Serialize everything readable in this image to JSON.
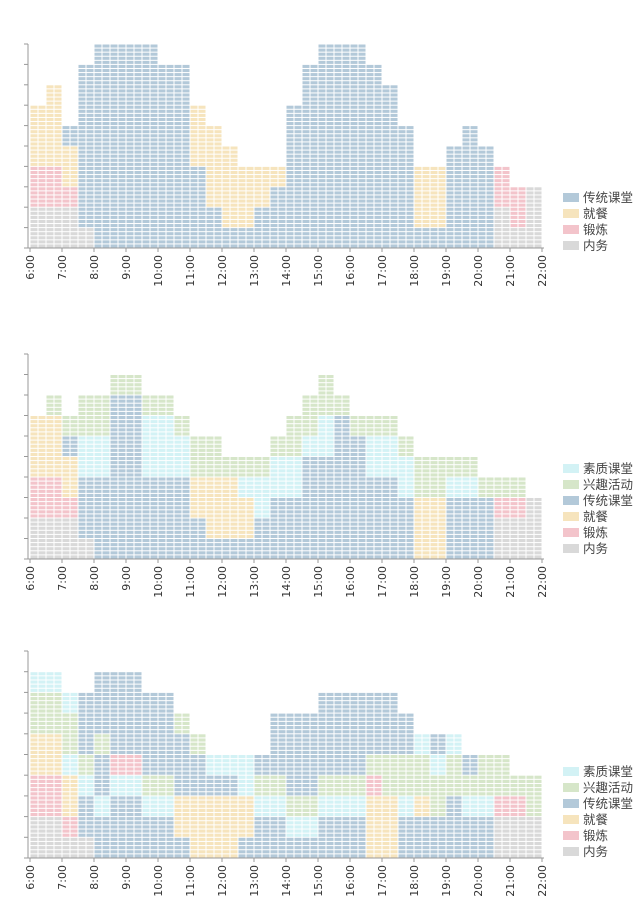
{
  "colors": {
    "传统课堂": "#b3c9d9",
    "就餐": "#f6e4bd",
    "锻炼": "#f3c4cb",
    "内务": "#d9d9d9",
    "素质课堂": "#d3f2f5",
    "兴趣活动": "#d6e6c9"
  },
  "chart_data": [
    {
      "type": "stacked-cell-timeline",
      "x_categories": [
        "6:00",
        "7:00",
        "8:00",
        "9:00",
        "10:00",
        "11:00",
        "12:00",
        "13:00",
        "14:00",
        "15:00",
        "16:00",
        "17:00",
        "18:00",
        "19:00",
        "20:00",
        "21:00",
        "22:00"
      ],
      "y_ticks": 10,
      "legend": [
        "传统课堂",
        "就餐",
        "锻炼",
        "内务"
      ],
      "x_slots": 32,
      "columns": [
        [
          "内务:2",
          "锻炼:2",
          "就餐:3"
        ],
        [
          "内务:2",
          "锻炼:2",
          "就餐:4"
        ],
        [
          "内务:2",
          "锻炼:1",
          "就餐:2",
          "传统课堂:1"
        ],
        [
          "内务:1",
          "传统课堂:8"
        ],
        [
          "传统课堂:10"
        ],
        [
          "传统课堂:10"
        ],
        [
          "传统课堂:10"
        ],
        [
          "传统课堂:10"
        ],
        [
          "传统课堂:9"
        ],
        [
          "传统课堂:9"
        ],
        [
          "传统课堂:4",
          "就餐:3"
        ],
        [
          "传统课堂:2",
          "就餐:4"
        ],
        [
          "传统课堂:1",
          "就餐:4"
        ],
        [
          "传统课堂:1",
          "就餐:3"
        ],
        [
          "传统课堂:2",
          "就餐:2"
        ],
        [
          "传统课堂:3",
          "就餐:1"
        ],
        [
          "传统课堂:7"
        ],
        [
          "传统课堂:9"
        ],
        [
          "传统课堂:10"
        ],
        [
          "传统课堂:10"
        ],
        [
          "传统课堂:10"
        ],
        [
          "传统课堂:9"
        ],
        [
          "传统课堂:8"
        ],
        [
          "传统课堂:6"
        ],
        [
          "传统课堂:1",
          "就餐:3"
        ],
        [
          "传统课堂:1",
          "就餐:3"
        ],
        [
          "传统课堂:5"
        ],
        [
          "传统课堂:6"
        ],
        [
          "传统课堂:5"
        ],
        [
          "内务:2",
          "锻炼:2"
        ],
        [
          "内务:1",
          "锻炼:2"
        ],
        [
          "内务:3"
        ]
      ]
    },
    {
      "type": "stacked-cell-timeline",
      "x_categories": [
        "6:00",
        "7:00",
        "8:00",
        "9:00",
        "10:00",
        "11:00",
        "12:00",
        "13:00",
        "14:00",
        "15:00",
        "16:00",
        "17:00",
        "18:00",
        "19:00",
        "20:00",
        "21:00",
        "22:00"
      ],
      "y_ticks": 10,
      "legend": [
        "素质课堂",
        "兴趣活动",
        "传统课堂",
        "就餐",
        "锻炼",
        "内务"
      ],
      "x_slots": 32,
      "columns": [
        [
          "内务:2",
          "锻炼:2",
          "就餐:3"
        ],
        [
          "内务:2",
          "锻炼:2",
          "就餐:3",
          "兴趣活动:1"
        ],
        [
          "内务:2",
          "锻炼:1",
          "就餐:2",
          "传统课堂:1",
          "兴趣活动:1"
        ],
        [
          "内务:1",
          "传统课堂:3",
          "素质课堂:2",
          "兴趣活动:2"
        ],
        [
          "传统课堂:4",
          "素质课堂:2",
          "兴趣活动:2"
        ],
        [
          "传统课堂:8",
          "兴趣活动:1"
        ],
        [
          "传统课堂:8",
          "兴趣活动:1"
        ],
        [
          "传统课堂:4",
          "素质课堂:3",
          "兴趣活动:1"
        ],
        [
          "传统课堂:4",
          "素质课堂:3",
          "兴趣活动:1"
        ],
        [
          "传统课堂:4",
          "素质课堂:2",
          "兴趣活动:1"
        ],
        [
          "传统课堂:2",
          "就餐:2",
          "兴趣活动:2"
        ],
        [
          "传统课堂:1",
          "就餐:3",
          "兴趣活动:2"
        ],
        [
          "传统课堂:1",
          "就餐:3",
          "兴趣活动:1"
        ],
        [
          "传统课堂:1",
          "就餐:2",
          "素质课堂:1",
          "兴趣活动:1"
        ],
        [
          "传统课堂:2",
          "素质课堂:2",
          "兴趣活动:1"
        ],
        [
          "传统课堂:3",
          "素质课堂:2",
          "兴趣活动:1"
        ],
        [
          "传统课堂:3",
          "素质课堂:2",
          "兴趣活动:2"
        ],
        [
          "传统课堂:5",
          "素质课堂:1",
          "兴趣活动:2"
        ],
        [
          "传统课堂:5",
          "素质课堂:2",
          "兴趣活动:2"
        ],
        [
          "传统课堂:7",
          "兴趣活动:1"
        ],
        [
          "传统课堂:6",
          "兴趣活动:1"
        ],
        [
          "传统课堂:4",
          "素质课堂:2",
          "兴趣活动:1"
        ],
        [
          "传统课堂:4",
          "素质课堂:2",
          "兴趣活动:1"
        ],
        [
          "传统课堂:3",
          "素质课堂:2",
          "兴趣活动:1"
        ],
        [
          "就餐:3",
          "兴趣活动:2"
        ],
        [
          "就餐:3",
          "兴趣活动:2"
        ],
        [
          "传统课堂:3",
          "素质课堂:1",
          "兴趣活动:1"
        ],
        [
          "传统课堂:3",
          "素质课堂:1",
          "兴趣活动:1"
        ],
        [
          "传统课堂:3",
          "兴趣活动:1"
        ],
        [
          "内务:2",
          "锻炼:1",
          "兴趣活动:1"
        ],
        [
          "内务:2",
          "锻炼:1",
          "兴趣活动:1"
        ],
        [
          "内务:3"
        ]
      ]
    },
    {
      "type": "stacked-cell-timeline",
      "x_categories": [
        "6:00",
        "7:00",
        "8:00",
        "9:00",
        "10:00",
        "11:00",
        "12:00",
        "13:00",
        "14:00",
        "15:00",
        "16:00",
        "17:00",
        "18:00",
        "19:00",
        "20:00",
        "21:00",
        "22:00"
      ],
      "y_ticks": 10,
      "legend": [
        "素质课堂",
        "兴趣活动",
        "传统课堂",
        "就餐",
        "锻炼",
        "内务"
      ],
      "x_slots": 32,
      "columns": [
        [
          "内务:2",
          "锻炼:2",
          "就餐:2",
          "兴趣活动:2",
          "素质课堂:1"
        ],
        [
          "内务:2",
          "锻炼:2",
          "就餐:2",
          "兴趣活动:2",
          "素质课堂:1"
        ],
        [
          "内务:1",
          "锻炼:1",
          "就餐:2",
          "素质课堂:1",
          "兴趣活动:2",
          "素质课堂:1"
        ],
        [
          "内务:1",
          "传统课堂:2",
          "素质课堂:1",
          "兴趣活动:1",
          "传统课堂:3"
        ],
        [
          "传统课堂:2",
          "素质课堂:1",
          "传统课堂:2",
          "兴趣活动:1",
          "传统课堂:3"
        ],
        [
          "传统课堂:3",
          "素质课堂:1",
          "锻炼:1",
          "传统课堂:4"
        ],
        [
          "传统课堂:3",
          "素质课堂:1",
          "锻炼:1",
          "传统课堂:4"
        ],
        [
          "传统课堂:2",
          "素质课堂:1",
          "兴趣活动:1",
          "传统课堂:4"
        ],
        [
          "传统课堂:2",
          "素质课堂:1",
          "兴趣活动:1",
          "传统课堂:4"
        ],
        [
          "传统课堂:1",
          "就餐:2",
          "传统课堂:3",
          "兴趣活动:1"
        ],
        [
          "就餐:3",
          "传统课堂:2",
          "兴趣活动:1"
        ],
        [
          "就餐:3",
          "传统课堂:1",
          "素质课堂:1"
        ],
        [
          "就餐:3",
          "传统课堂:1",
          "素质课堂:1"
        ],
        [
          "传统课堂:1",
          "就餐:2",
          "素质课堂:2"
        ],
        [
          "传统课堂:2",
          "素质课堂:1",
          "兴趣活动:1",
          "传统课堂:1"
        ],
        [
          "传统课堂:2",
          "素质课堂:1",
          "兴趣活动:1",
          "传统课堂:3"
        ],
        [
          "传统课堂:1",
          "素质课堂:1",
          "兴趣活动:1",
          "传统课堂:4"
        ],
        [
          "传统课堂:1",
          "素质课堂:1",
          "兴趣活动:1",
          "传统课堂:4"
        ],
        [
          "传统课堂:2",
          "素质课堂:1",
          "兴趣活动:1",
          "传统课堂:4"
        ],
        [
          "传统课堂:2",
          "素质课堂:1",
          "兴趣活动:1",
          "传统课堂:4"
        ],
        [
          "传统课堂:2",
          "素质课堂:1",
          "兴趣活动:1",
          "传统课堂:4"
        ],
        [
          "就餐:3",
          "锻炼:1",
          "兴趣活动:1",
          "传统课堂:3"
        ],
        [
          "就餐:3",
          "兴趣活动:2",
          "传统课堂:3"
        ],
        [
          "传统课堂:2",
          "素质课堂:1",
          "兴趣活动:2",
          "传统课堂:2"
        ],
        [
          "传统课堂:2",
          "就餐:1",
          "兴趣活动:2",
          "素质课堂:1"
        ],
        [
          "传统课堂:2",
          "兴趣活动:2",
          "素质课堂:1",
          "传统课堂:1"
        ],
        [
          "传统课堂:3",
          "兴趣活动:2",
          "素质课堂:1"
        ],
        [
          "传统课堂:2",
          "素质课堂:1",
          "兴趣活动:1",
          "传统课堂:1"
        ],
        [
          "传统课堂:2",
          "素质课堂:1",
          "兴趣活动:2"
        ],
        [
          "内务:2",
          "锻炼:1",
          "兴趣活动:2"
        ],
        [
          "内务:2",
          "锻炼:1",
          "兴趣活动:1"
        ],
        [
          "内务:2",
          "兴趣活动:2"
        ]
      ]
    }
  ]
}
